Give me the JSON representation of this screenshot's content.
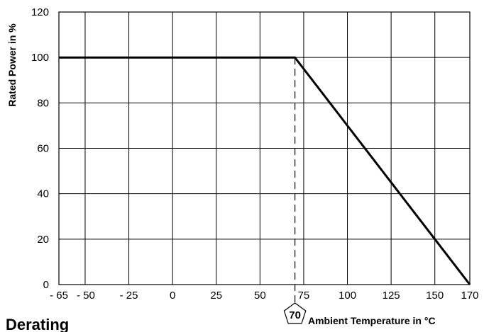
{
  "chart_data": {
    "type": "line",
    "title": "Derating",
    "xlabel": "Ambient Temperature in °C",
    "ylabel": "Rated Power in %",
    "xlim": [
      -65,
      170
    ],
    "ylim": [
      0,
      120
    ],
    "grid": true,
    "x_ticks": [
      {
        "value": -65,
        "label": "- 65"
      },
      {
        "value": -50,
        "label": "- 50"
      },
      {
        "value": -25,
        "label": "- 25"
      },
      {
        "value": 0,
        "label": "0"
      },
      {
        "value": 25,
        "label": "25"
      },
      {
        "value": 50,
        "label": "50"
      },
      {
        "value": 75,
        "label": "75"
      },
      {
        "value": 100,
        "label": "100"
      },
      {
        "value": 125,
        "label": "125"
      },
      {
        "value": 150,
        "label": "150"
      },
      {
        "value": 170,
        "label": "170"
      }
    ],
    "y_ticks": [
      0,
      20,
      40,
      60,
      80,
      100,
      120
    ],
    "series": [
      {
        "x": [
          -65,
          70,
          170
        ],
        "y": [
          100,
          100,
          0
        ],
        "color": "#000000"
      }
    ],
    "marker": {
      "x": 70,
      "label": "70"
    }
  }
}
